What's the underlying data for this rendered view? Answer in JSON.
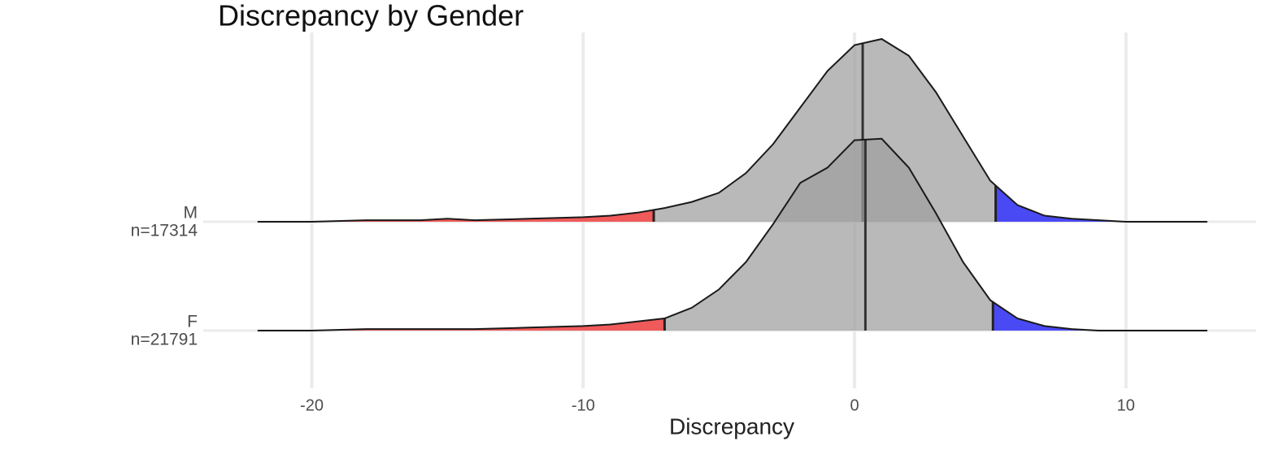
{
  "chart_data": {
    "type": "ridgeline",
    "title": "Discrepancy by Gender",
    "xlabel": "Discrepancy",
    "xlim": [
      -24,
      14.8
    ],
    "xticks": [
      -20,
      -10,
      0,
      10
    ],
    "ylim": [
      0,
      0.16
    ],
    "grid": true,
    "fill_color": "#9e9e9e",
    "low_color": "#f05a5a",
    "high_color": "#4a4af5",
    "x": [
      -22,
      -20,
      -18,
      -16,
      -15,
      -14,
      -12,
      -10,
      -9,
      -8,
      -7,
      -6,
      -5,
      -4,
      -3,
      -2,
      -1,
      0,
      1,
      2,
      3,
      4,
      5,
      6,
      7,
      8,
      9,
      10,
      13
    ],
    "series": [
      {
        "name": "M",
        "n_label": "n=17314",
        "median": 0.3,
        "lower_cutoff": -7.4,
        "upper_cutoff": 5.2,
        "values": [
          0,
          0,
          0.001,
          0.001,
          0.002,
          0.001,
          0.002,
          0.003,
          0.004,
          0.006,
          0.009,
          0.013,
          0.019,
          0.032,
          0.051,
          0.075,
          0.099,
          0.116,
          0.12,
          0.109,
          0.085,
          0.056,
          0.027,
          0.011,
          0.004,
          0.002,
          0.001,
          0,
          0
        ]
      },
      {
        "name": "F",
        "n_label": "n=21791",
        "median": 0.4,
        "lower_cutoff": -7.0,
        "upper_cutoff": 5.1,
        "values": [
          0,
          0,
          0.001,
          0.001,
          0.001,
          0.001,
          0.002,
          0.003,
          0.004,
          0.006,
          0.008,
          0.015,
          0.027,
          0.045,
          0.07,
          0.097,
          0.107,
          0.125,
          0.126,
          0.107,
          0.077,
          0.045,
          0.02,
          0.008,
          0.003,
          0.001,
          0,
          0,
          0
        ]
      }
    ]
  }
}
